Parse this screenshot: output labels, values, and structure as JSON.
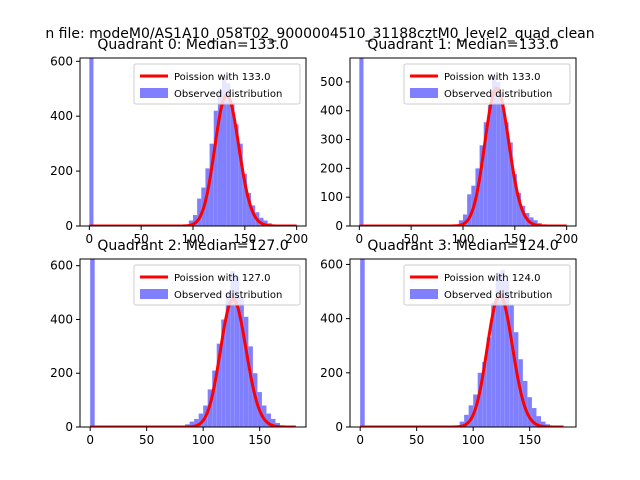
{
  "figure": {
    "suptitle": "n file: modeM0/AS1A10_058T02_9000004510_31188cztM0_level2_quad_clean"
  },
  "colors": {
    "poisson": "#ff0000",
    "observed": "#8080ff"
  },
  "chart_data": [
    {
      "type": "bar",
      "title": "Quadrant 0: Median=133.0",
      "legend": [
        "Poission with 133.0",
        "Observed distribution"
      ],
      "legend_placement": "upper-right",
      "xlim": [
        -9,
        209
      ],
      "ylim": [
        0,
        612
      ],
      "xticks": [
        0,
        50,
        100,
        150,
        200
      ],
      "yticks": [
        0,
        200,
        400,
        600
      ],
      "poisson_mean": 133,
      "poisson_scale": 13810,
      "poisson_range": [
        0,
        200
      ],
      "bin_width": 4,
      "bin_starts": [
        0,
        92,
        96,
        100,
        104,
        108,
        112,
        116,
        120,
        124,
        128,
        132,
        136,
        140,
        144,
        148,
        152,
        156,
        160,
        164,
        168,
        172,
        176
      ],
      "counts": [
        612,
        5,
        20,
        40,
        100,
        140,
        210,
        300,
        420,
        495,
        545,
        520,
        450,
        370,
        300,
        190,
        120,
        75,
        50,
        30,
        20,
        10,
        5
      ]
    },
    {
      "type": "bar",
      "title": "Quadrant 1: Median=133.0",
      "legend": [
        "Poission with 133.0",
        "Observed distribution"
      ],
      "legend_placement": "upper-right",
      "xlim": [
        -9,
        209
      ],
      "ylim": [
        0,
        583
      ],
      "xticks": [
        0,
        50,
        100,
        150,
        200
      ],
      "yticks": [
        0,
        100,
        200,
        300,
        400,
        500
      ],
      "poisson_mean": 133,
      "poisson_scale": 13810,
      "poisson_range": [
        0,
        200
      ],
      "bin_width": 4,
      "bin_starts": [
        0,
        92,
        96,
        100,
        104,
        108,
        112,
        116,
        120,
        124,
        128,
        132,
        136,
        140,
        144,
        148,
        152,
        156,
        160,
        164,
        168,
        172,
        176
      ],
      "counts": [
        583,
        5,
        20,
        40,
        110,
        140,
        200,
        280,
        360,
        420,
        520,
        500,
        430,
        360,
        290,
        180,
        115,
        70,
        45,
        30,
        20,
        10,
        5
      ]
    },
    {
      "type": "bar",
      "title": "Quadrant 2: Median=127.0",
      "legend": [
        "Poission with 127.0",
        "Observed distribution"
      ],
      "legend_placement": "upper-right",
      "xlim": [
        -9,
        191
      ],
      "ylim": [
        0,
        625
      ],
      "xticks": [
        0,
        50,
        100,
        150
      ],
      "yticks": [
        0,
        200,
        400,
        600
      ],
      "poisson_mean": 127,
      "poisson_scale": 13450,
      "poisson_range": [
        0,
        182
      ],
      "bin_width": 4,
      "bin_starts": [
        0,
        80,
        84,
        88,
        92,
        96,
        100,
        104,
        108,
        112,
        116,
        120,
        124,
        128,
        132,
        136,
        140,
        144,
        148,
        152,
        156,
        160,
        164,
        168
      ],
      "counts": [
        625,
        5,
        10,
        20,
        30,
        50,
        80,
        140,
        210,
        310,
        400,
        500,
        580,
        560,
        480,
        410,
        300,
        200,
        130,
        80,
        50,
        30,
        15,
        5
      ]
    },
    {
      "type": "bar",
      "title": "Quadrant 3: Median=124.0",
      "legend": [
        "Poission with 124.0",
        "Observed distribution"
      ],
      "legend_placement": "upper-right",
      "xlim": [
        -9,
        191
      ],
      "ylim": [
        0,
        620
      ],
      "xticks": [
        0,
        50,
        100,
        150
      ],
      "yticks": [
        0,
        200,
        400,
        600
      ],
      "poisson_mean": 124,
      "poisson_scale": 13600,
      "poisson_range": [
        0,
        180
      ],
      "bin_width": 4,
      "bin_starts": [
        0,
        84,
        88,
        92,
        96,
        100,
        104,
        108,
        112,
        116,
        120,
        124,
        128,
        132,
        136,
        140,
        144,
        148,
        152,
        156,
        160,
        164,
        168
      ],
      "counts": [
        620,
        5,
        20,
        45,
        80,
        120,
        200,
        240,
        330,
        460,
        570,
        580,
        540,
        450,
        350,
        250,
        170,
        110,
        70,
        40,
        20,
        10,
        5
      ]
    }
  ]
}
